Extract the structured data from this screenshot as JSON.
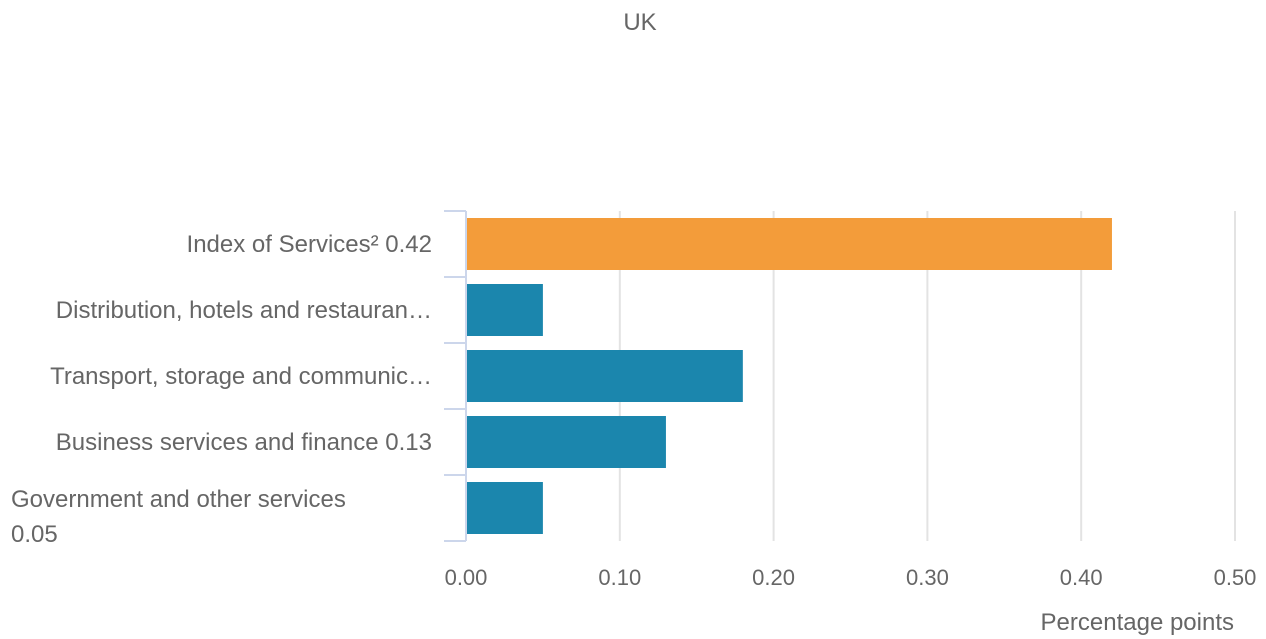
{
  "chart_data": {
    "type": "bar",
    "orientation": "horizontal",
    "title": "UK",
    "categories": [
      {
        "label": "Index of Services² 0.42",
        "lines": [
          "Index of Services² 0.42"
        ]
      },
      {
        "label": "Distribution, hotels and restauran…",
        "lines": [
          "Distribution, hotels and restauran…"
        ]
      },
      {
        "label": "Transport, storage and communic…",
        "lines": [
          "Transport, storage and communic…"
        ]
      },
      {
        "label": "Business services and finance 0.13",
        "lines": [
          "Business services and finance 0.13"
        ]
      },
      {
        "label": "Government and other services 0.05",
        "lines": [
          "Government and other services",
          "0.05"
        ]
      }
    ],
    "values": [
      0.42,
      0.05,
      0.18,
      0.13,
      0.05
    ],
    "bar_colors": [
      "#f39c3a",
      "#1b86ad",
      "#1b86ad",
      "#1b86ad",
      "#1b86ad"
    ],
    "xlabel": "Percentage points",
    "ylabel": "",
    "xlim": [
      0,
      0.5
    ],
    "ticks": [
      "0.00",
      "0.10",
      "0.20",
      "0.30",
      "0.40",
      "0.50"
    ],
    "tick_values": [
      0,
      0.1,
      0.2,
      0.3,
      0.4,
      0.5
    ],
    "grid": true
  }
}
